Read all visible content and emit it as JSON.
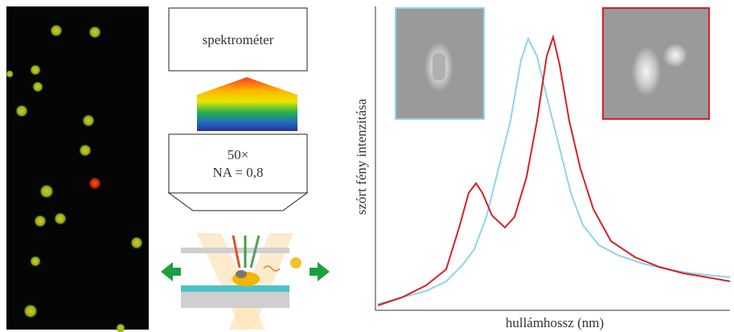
{
  "schematic": {
    "spectrometer": "spektrométer",
    "objective": [
      "50×",
      "NA = 0,8"
    ]
  },
  "plot": {
    "x_label": "hullámhossz (nm)",
    "y_label": "szórt fény intenzitása"
  }
}
